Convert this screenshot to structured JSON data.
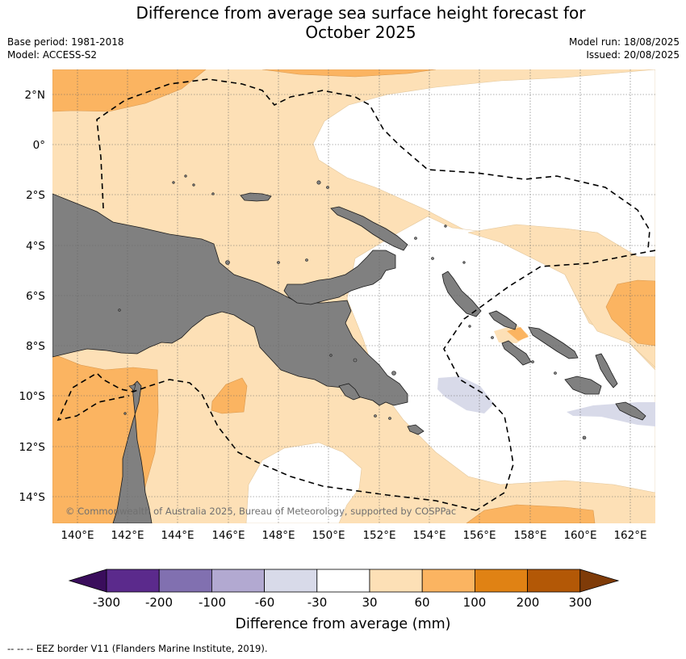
{
  "title_line1": "Difference from average sea surface height forecast for",
  "title_line2": "October 2025",
  "base_period": "Base period: 1981-2018",
  "model": "Model: ACCESS-S2",
  "model_run": "Model run: 18/08/2025",
  "issued": "Issued: 20/08/2025",
  "lat_labels": [
    "2°N",
    "0°",
    "2°S",
    "4°S",
    "6°S",
    "8°S",
    "10°S",
    "12°S",
    "14°S"
  ],
  "lon_labels": [
    "140°E",
    "142°E",
    "144°E",
    "146°E",
    "148°E",
    "150°E",
    "152°E",
    "154°E",
    "156°E",
    "158°E",
    "160°E",
    "162°E"
  ],
  "credit": "© Commonwealth of Australia 2025, Bureau of Meteorology, supported by COSPPac",
  "colorbar": {
    "ticks": [
      "-300",
      "-200",
      "-100",
      "-60",
      "-30",
      "30",
      "60",
      "100",
      "200",
      "300"
    ],
    "colors": [
      "#3a0d5c",
      "#5b2a8c",
      "#8170b0",
      "#b2a9d1",
      "#d8dae9",
      "#ffffff",
      "#fde0b6",
      "#fbb461",
      "#e08214",
      "#b35806",
      "#7f3b08"
    ],
    "title": "Difference from average (mm)"
  },
  "footer": "--  --  -- EEZ border V11 (Flanders Marine Institute, 2019).",
  "map_colors": {
    "land": "#808080",
    "light_orange": "#fde0b6",
    "orange": "#fbb461",
    "lavender": "#d8dae9",
    "ocean_neutral": "#ffffff"
  }
}
